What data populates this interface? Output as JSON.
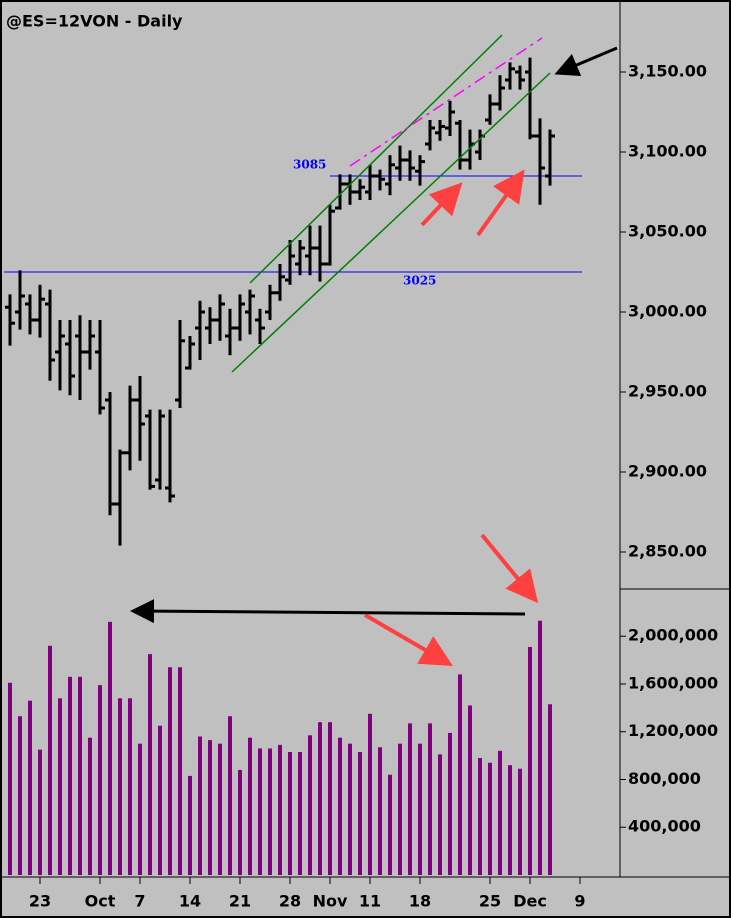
{
  "chart_data": {
    "type": "ohlc",
    "title": "@ES=12VON - Daily",
    "categories": [
      null,
      null,
      null,
      "23",
      null,
      null,
      null,
      null,
      null,
      "Oct",
      null,
      null,
      null,
      "7",
      null,
      null,
      null,
      null,
      "14",
      null,
      null,
      null,
      null,
      "21",
      null,
      null,
      null,
      null,
      "28",
      null,
      null,
      null,
      "Nov",
      null,
      null,
      null,
      "11",
      null,
      null,
      null,
      null,
      "18",
      null,
      null,
      null,
      null,
      null,
      null,
      "25",
      null,
      null,
      null,
      "Dec",
      null,
      null,
      null,
      null,
      "9"
    ],
    "open": [
      3003,
      3000,
      3005,
      2995,
      3005,
      2975,
      2980,
      2985,
      2975,
      2975,
      2945,
      2880,
      2912,
      2945,
      2935,
      2895,
      2890,
      2945,
      2965,
      2990,
      2990,
      2995,
      2985,
      2990,
      3000,
      2995,
      3000,
      3012,
      3020,
      3030,
      3035,
      3040,
      3030,
      3065,
      3080,
      3075,
      3075,
      3085,
      3080,
      3090,
      3095,
      3088,
      3105,
      3112,
      3115,
      3118,
      3095,
      3100,
      3120,
      3130,
      3145,
      3150,
      3150,
      3110,
      3085,
      null,
      null,
      null
    ],
    "high": [
      3011,
      3026,
      3011,
      3017,
      3014,
      2995,
      2995,
      2998,
      2995,
      2995,
      2950,
      2914,
      2954,
      2960,
      2939,
      2939,
      2939,
      2995,
      2985,
      3007,
      3003,
      3011,
      3002,
      3011,
      3014,
      3002,
      3017,
      3030,
      3045,
      3045,
      3054,
      3054,
      3067,
      3086,
      3086,
      3083,
      3092,
      3089,
      3098,
      3104,
      3101,
      3098,
      3120,
      3120,
      3132,
      3120,
      3114,
      3114,
      3136,
      3148,
      3156,
      3154,
      3159,
      3121,
      3114,
      null,
      null,
      null
    ],
    "low": [
      2979,
      2989,
      2986,
      2984,
      2957,
      2951,
      2948,
      2945,
      2964,
      2936,
      2873,
      2854,
      2901,
      2907,
      2889,
      2889,
      2881,
      2940,
      2964,
      2970,
      2980,
      2982,
      2973,
      2982,
      2986,
      2980,
      2995,
      3007,
      3017,
      3023,
      3023,
      3019,
      3029,
      3064,
      3067,
      3070,
      3070,
      3076,
      3073,
      3082,
      3082,
      3079,
      3101,
      3107,
      3110,
      3089,
      3089,
      3095,
      3117,
      3126,
      3139,
      3139,
      3108,
      3067,
      3079,
      null,
      null,
      null
    ],
    "close": [
      2993,
      3010,
      2995,
      3008,
      2970,
      2985,
      2960,
      2975,
      2985,
      2940,
      2880,
      2912,
      2945,
      2930,
      2891,
      2935,
      2885,
      2982,
      2980,
      3000,
      2995,
      3005,
      2990,
      3005,
      3010,
      2990,
      3012,
      3022,
      3035,
      3040,
      3040,
      3030,
      3063,
      3080,
      3075,
      3078,
      3085,
      3083,
      3092,
      3095,
      3090,
      3094,
      3115,
      3116,
      3125,
      3095,
      3105,
      3110,
      3130,
      3140,
      3152,
      3145,
      3110,
      3090,
      3110,
      null,
      null,
      null
    ],
    "color": "#000000",
    "ylim": [
      2827.5,
      3192.5
    ],
    "yticks": [
      {
        "value": 2850,
        "label": "2,850.00"
      },
      {
        "value": 2900,
        "label": "2,900.00"
      },
      {
        "value": 2950,
        "label": "2,950.00"
      },
      {
        "value": 3000,
        "label": "3,000.00"
      },
      {
        "value": 3050,
        "label": "3,050.00"
      },
      {
        "value": 3100,
        "label": "3,100.00"
      },
      {
        "value": 3150,
        "label": "3,150.00"
      }
    ],
    "levels": [
      3085,
      3025
    ],
    "level_color": "#0000ff",
    "volume": {
      "values": [
        1610000,
        1330000,
        1460000,
        1050000,
        1920000,
        1480000,
        1660000,
        1660000,
        1150000,
        1590000,
        2120000,
        1480000,
        1480000,
        1100000,
        1850000,
        1250000,
        1740000,
        1740000,
        830000,
        1160000,
        1130000,
        1100000,
        1330000,
        880000,
        1150000,
        1060000,
        1060000,
        1090000,
        1030000,
        1030000,
        1170000,
        1280000,
        1280000,
        1150000,
        1100000,
        1030000,
        1350000,
        1070000,
        840000,
        1100000,
        1270000,
        1100000,
        1270000,
        1010000,
        1190000,
        1680000,
        1420000,
        980000,
        940000,
        1040000,
        920000,
        890000,
        1910000,
        2130000,
        1430000,
        null,
        null,
        null
      ],
      "color": "#800080",
      "ylim": [
        0,
        2387000
      ],
      "yticks": [
        {
          "value": 400000,
          "label": "400,000"
        },
        {
          "value": 800000,
          "label": "800,000"
        },
        {
          "value": 1200000,
          "label": "1,200,000"
        },
        {
          "value": 1600000,
          "label": "1,600,000"
        },
        {
          "value": 2000000,
          "label": "2,000,000"
        }
      ]
    }
  }
}
